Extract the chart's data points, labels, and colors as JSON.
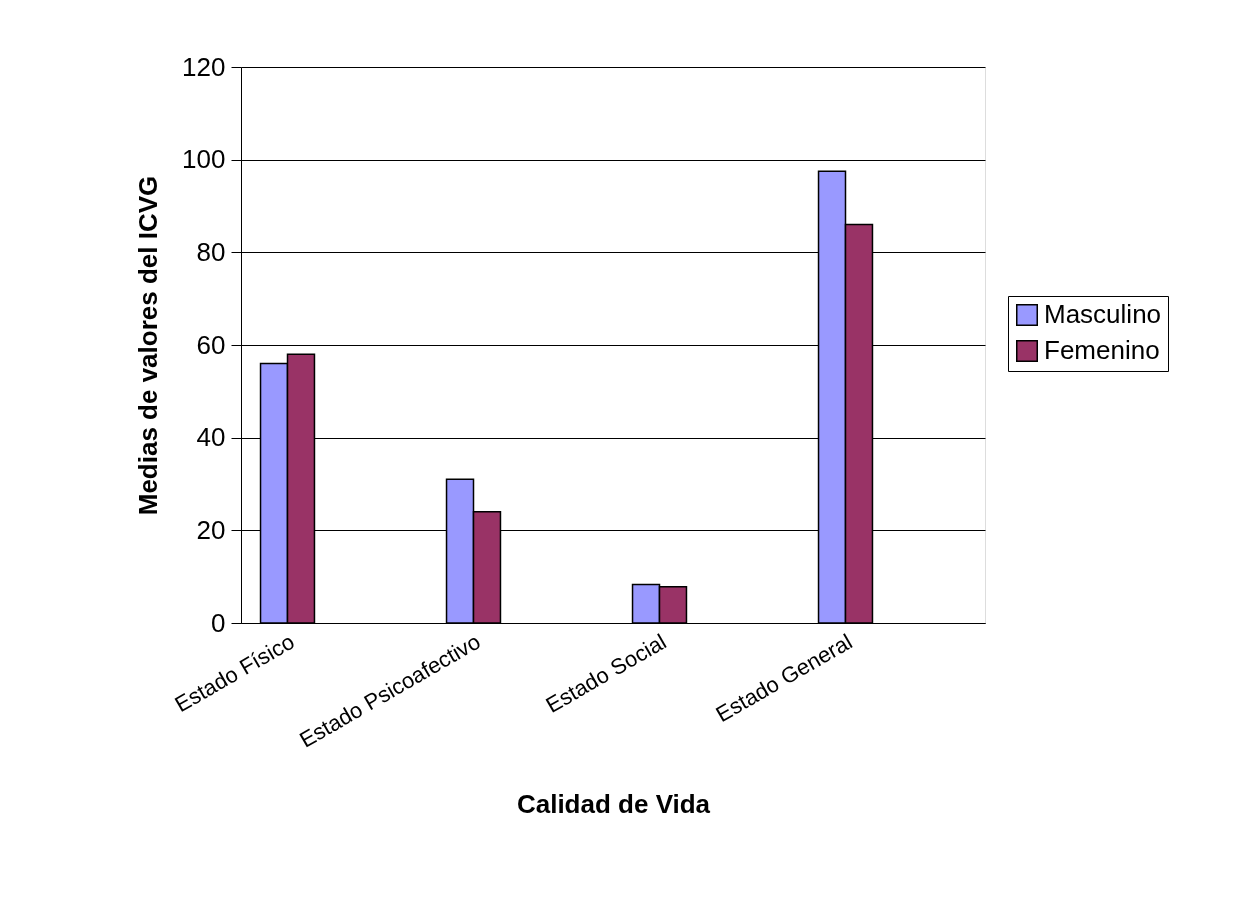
{
  "chart_data": {
    "type": "bar",
    "xlabel": "Calidad de Vida",
    "ylabel": "Medias de valores del ICVG",
    "categories": [
      "Estado Físico",
      null,
      "Estado Psicoafectivo",
      null,
      "Estado Social",
      null,
      "Estado General",
      null
    ],
    "series": [
      {
        "name": "Masculino",
        "color": "#9999ff",
        "values": [
          56,
          null,
          31,
          null,
          8.3,
          null,
          97.5,
          null
        ]
      },
      {
        "name": "Femenino",
        "color": "#993366",
        "values": [
          58,
          null,
          24,
          null,
          7.8,
          null,
          86,
          null
        ]
      }
    ],
    "ylim": [
      0,
      120
    ],
    "yticks": [
      0,
      20,
      40,
      60,
      80,
      100,
      120
    ],
    "grid": "y",
    "legend": "right"
  }
}
